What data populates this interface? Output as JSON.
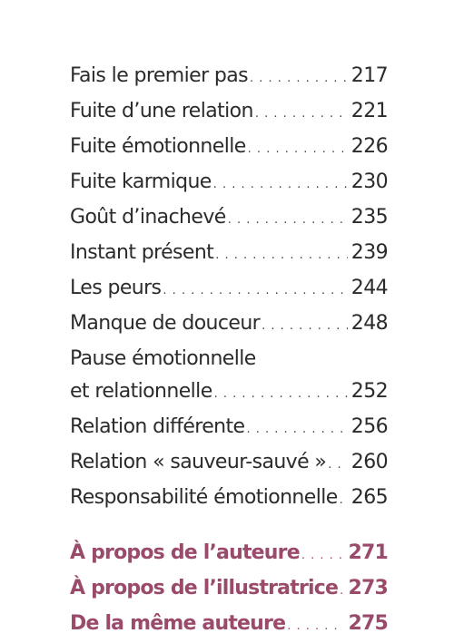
{
  "entries": [
    {
      "title": "Fais le premier pas",
      "page": "217"
    },
    {
      "title": "Fuite d’une relation",
      "page": "221"
    },
    {
      "title": "Fuite émotionnelle",
      "page": "226"
    },
    {
      "title": "Fuite karmique",
      "page": "230"
    },
    {
      "title": "Goût d’inachevé",
      "page": "235"
    },
    {
      "title": "Instant présent",
      "page": "239"
    },
    {
      "title": "Les peurs",
      "page": "244"
    },
    {
      "title": "Manque de douceur",
      "page": "248"
    },
    {
      "title_line1": "Pause émotionnelle",
      "title_line2": "et relationnelle",
      "page": "252"
    },
    {
      "title": "Relation différente",
      "page": "256"
    },
    {
      "title": "Relation « sauveur-sauvé »",
      "page": "260"
    },
    {
      "title": "Responsabilité émotionnelle",
      "page": "265"
    }
  ],
  "appendix": [
    {
      "title": "À propos de l’auteure",
      "page": "271"
    },
    {
      "title": "À propos de l’illustratrice",
      "page": "273"
    },
    {
      "title": "De la même auteure",
      "page": "275"
    }
  ],
  "colors": {
    "text": "#2b2b2b",
    "accent": "#9a4a6a"
  }
}
